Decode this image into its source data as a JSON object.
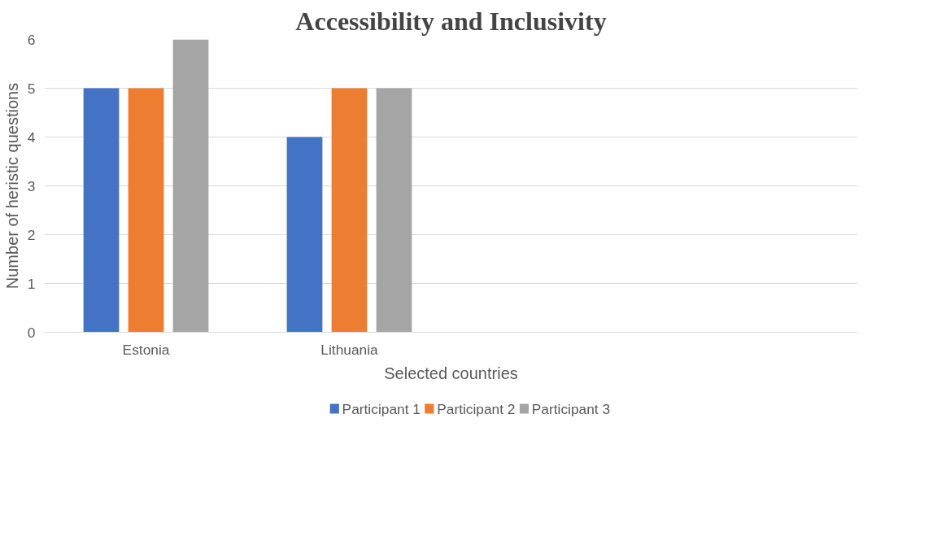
{
  "chart_data": {
    "type": "bar",
    "title": "Accessibility and Inclusivity",
    "xlabel": "Selected countries",
    "ylabel": "Number of heristic questions",
    "categories": [
      "Estonia",
      "Lithuania",
      null,
      null
    ],
    "series": [
      {
        "name": "Participant 1",
        "color": "#4472c4",
        "values": [
          5,
          4,
          null,
          null
        ]
      },
      {
        "name": "Participant 2",
        "color": "#ed7d31",
        "values": [
          5,
          5,
          null,
          null
        ]
      },
      {
        "name": "Participant 3",
        "color": "#a5a5a5",
        "values": [
          6,
          5,
          null,
          null
        ]
      }
    ],
    "ylim": [
      0,
      6
    ],
    "yticks": [
      0,
      1,
      2,
      3,
      4,
      5,
      6
    ],
    "grid": "y",
    "legend": "bottom"
  }
}
